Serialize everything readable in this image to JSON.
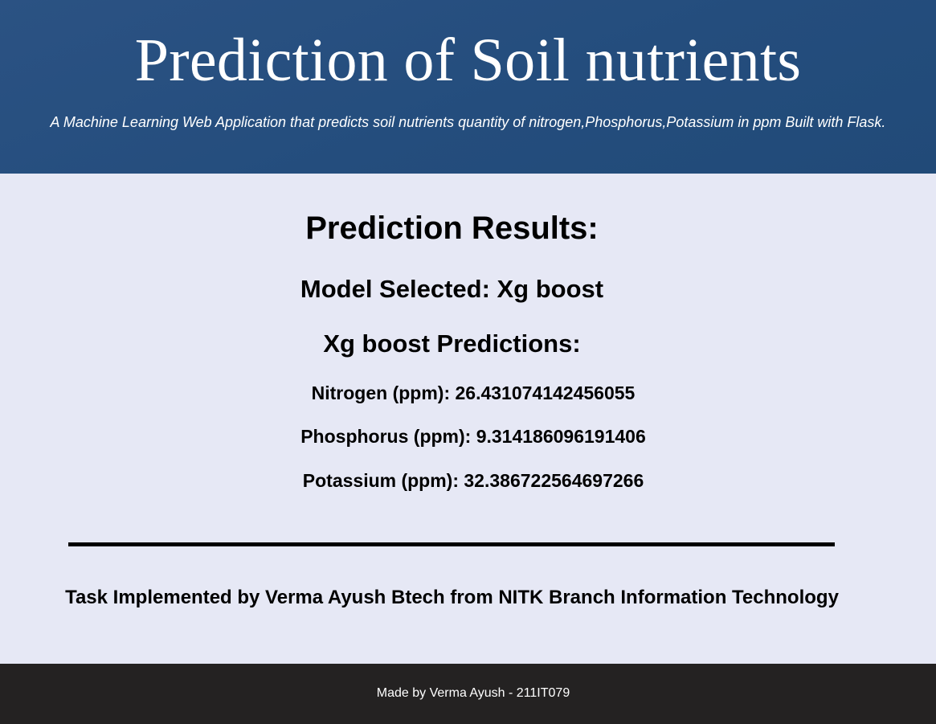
{
  "header": {
    "title": "Prediction of Soil nutrients",
    "subtitle": "A Machine Learning Web Application that predicts soil nutrients quantity of nitrogen,Phosphorus,Potassium in ppm Built with Flask."
  },
  "results": {
    "heading": "Prediction Results:",
    "model_selected": "Model Selected: Xg boost",
    "predictions_heading": "Xg boost Predictions:",
    "nitrogen": "Nitrogen (ppm): 26.431074142456055",
    "phosphorus": "Phosphorus (ppm): 9.314186096191406",
    "potassium": "Potassium (ppm): 32.386722564697266"
  },
  "credit": "Task Implemented by Verma Ayush Btech from NITK Branch Information Technology",
  "footer": {
    "text": "Made by Verma Ayush - 211IT079"
  },
  "colors": {
    "header_bg": "#244d7d",
    "page_bg": "#e6e8f5",
    "footer_bg": "#242222",
    "text": "#000000"
  }
}
